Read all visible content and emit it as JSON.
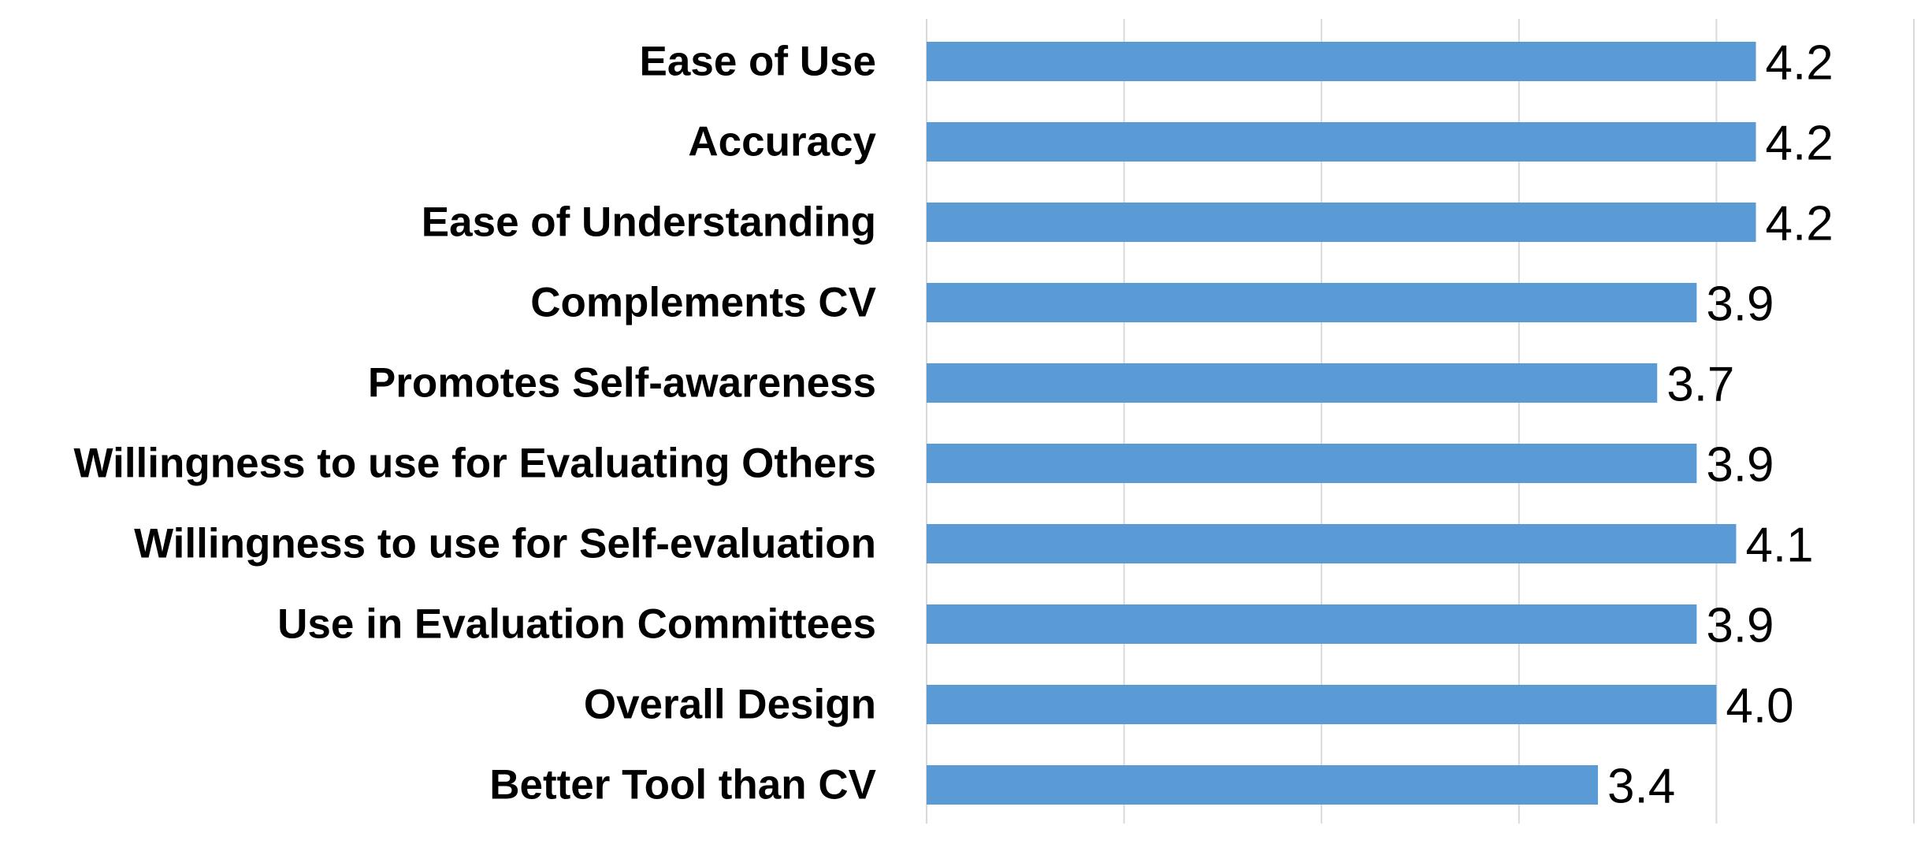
{
  "chart_data": {
    "type": "bar",
    "orientation": "horizontal",
    "title": "",
    "xlabel": "",
    "ylabel": "",
    "categories": [
      "Ease of Use",
      "Accuracy",
      "Ease of Understanding",
      "Complements CV",
      "Promotes Self-awareness",
      "Willingness to use for Evaluating Others",
      "Willingness to use for Self-evaluation",
      "Use in Evaluation Committees",
      "Overall Design",
      "Better Tool than CV"
    ],
    "values": [
      4.2,
      4.2,
      4.2,
      3.9,
      3.7,
      3.9,
      4.1,
      3.9,
      4.0,
      3.4
    ],
    "value_labels": [
      "4.2",
      "4.2",
      "4.2",
      "3.9",
      "3.7",
      "3.9",
      "4.1",
      "3.9",
      "4.0",
      "3.4"
    ],
    "xlim": [
      0,
      5
    ],
    "grid": true,
    "legend": "none",
    "bar_color": "#5b9bd5"
  }
}
